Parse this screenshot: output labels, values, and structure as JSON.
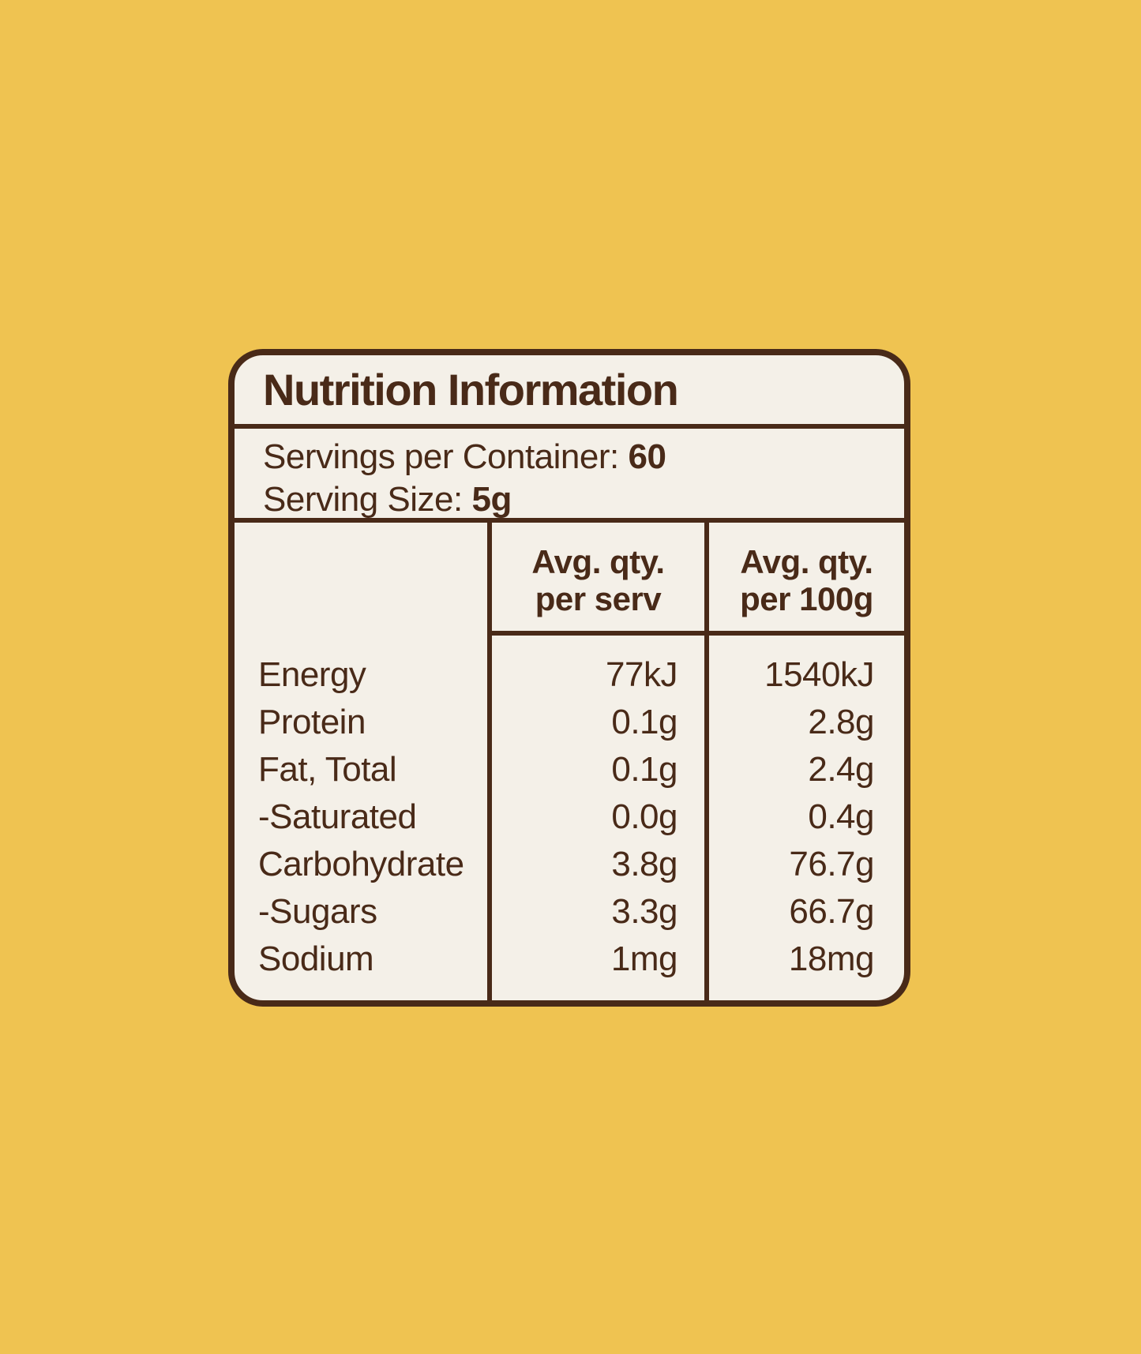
{
  "colors": {
    "background": "#EFC351",
    "card_background": "#F4F0E8",
    "ink_brown": "#492A18"
  },
  "card": {
    "title": "Nutrition Information",
    "serving_info": {
      "servings_label": "Servings per Container:",
      "servings_value": "60",
      "size_label": "Serving Size:",
      "size_value": "5g"
    },
    "table": {
      "columns": [
        {
          "line1": "Avg. qty.",
          "line2": "per serv"
        },
        {
          "line1": "Avg. qty.",
          "line2": "per 100g"
        }
      ],
      "rows": [
        {
          "label": "Energy",
          "per_serv": "77kJ",
          "per_100g": "1540kJ"
        },
        {
          "label": "Protein",
          "per_serv": "0.1g",
          "per_100g": "2.8g"
        },
        {
          "label": "Fat, Total",
          "per_serv": "0.1g",
          "per_100g": "2.4g"
        },
        {
          "label": "-Saturated",
          "per_serv": "0.0g",
          "per_100g": "0.4g"
        },
        {
          "label": "Carbohydrate",
          "per_serv": "3.8g",
          "per_100g": "76.7g"
        },
        {
          "label": "-Sugars",
          "per_serv": "3.3g",
          "per_100g": "66.7g"
        },
        {
          "label": "Sodium",
          "per_serv": "1mg",
          "per_100g": "18mg"
        }
      ]
    }
  }
}
